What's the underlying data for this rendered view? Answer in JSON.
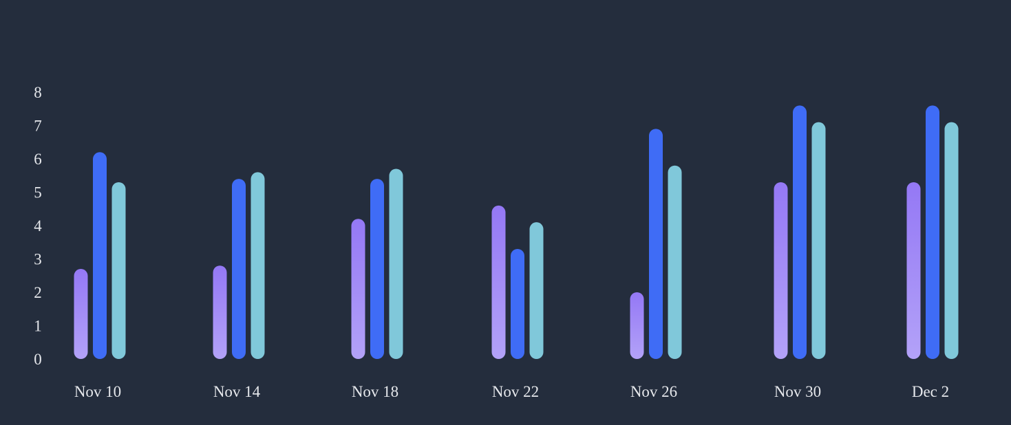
{
  "chart_data": {
    "type": "bar",
    "categories": [
      "Nov 10",
      "Nov 14",
      "Nov 18",
      "Nov 22",
      "Nov 26",
      "Nov 30",
      "Dec 2"
    ],
    "series": [
      {
        "values": [
          2.7,
          2.8,
          4.2,
          4.6,
          2.0,
          5.3,
          5.3
        ],
        "color_top": "#9478f5",
        "color_bottom": "#b3a2f8"
      },
      {
        "values": [
          6.2,
          5.4,
          5.4,
          3.3,
          6.9,
          7.6,
          7.6
        ],
        "color": "#3f6cf6"
      },
      {
        "values": [
          5.3,
          5.6,
          5.7,
          4.1,
          5.8,
          7.1,
          7.1
        ],
        "color": "#80c8da"
      }
    ],
    "yticks": [
      "0",
      "1",
      "2",
      "3",
      "4",
      "5",
      "6",
      "7",
      "8"
    ],
    "ylim": [
      0,
      8
    ],
    "grid": false,
    "legend": "none",
    "title": "",
    "xlabel": "",
    "ylabel": ""
  },
  "colors": {
    "background": "#242d3d",
    "text": "#e6e8ec"
  }
}
